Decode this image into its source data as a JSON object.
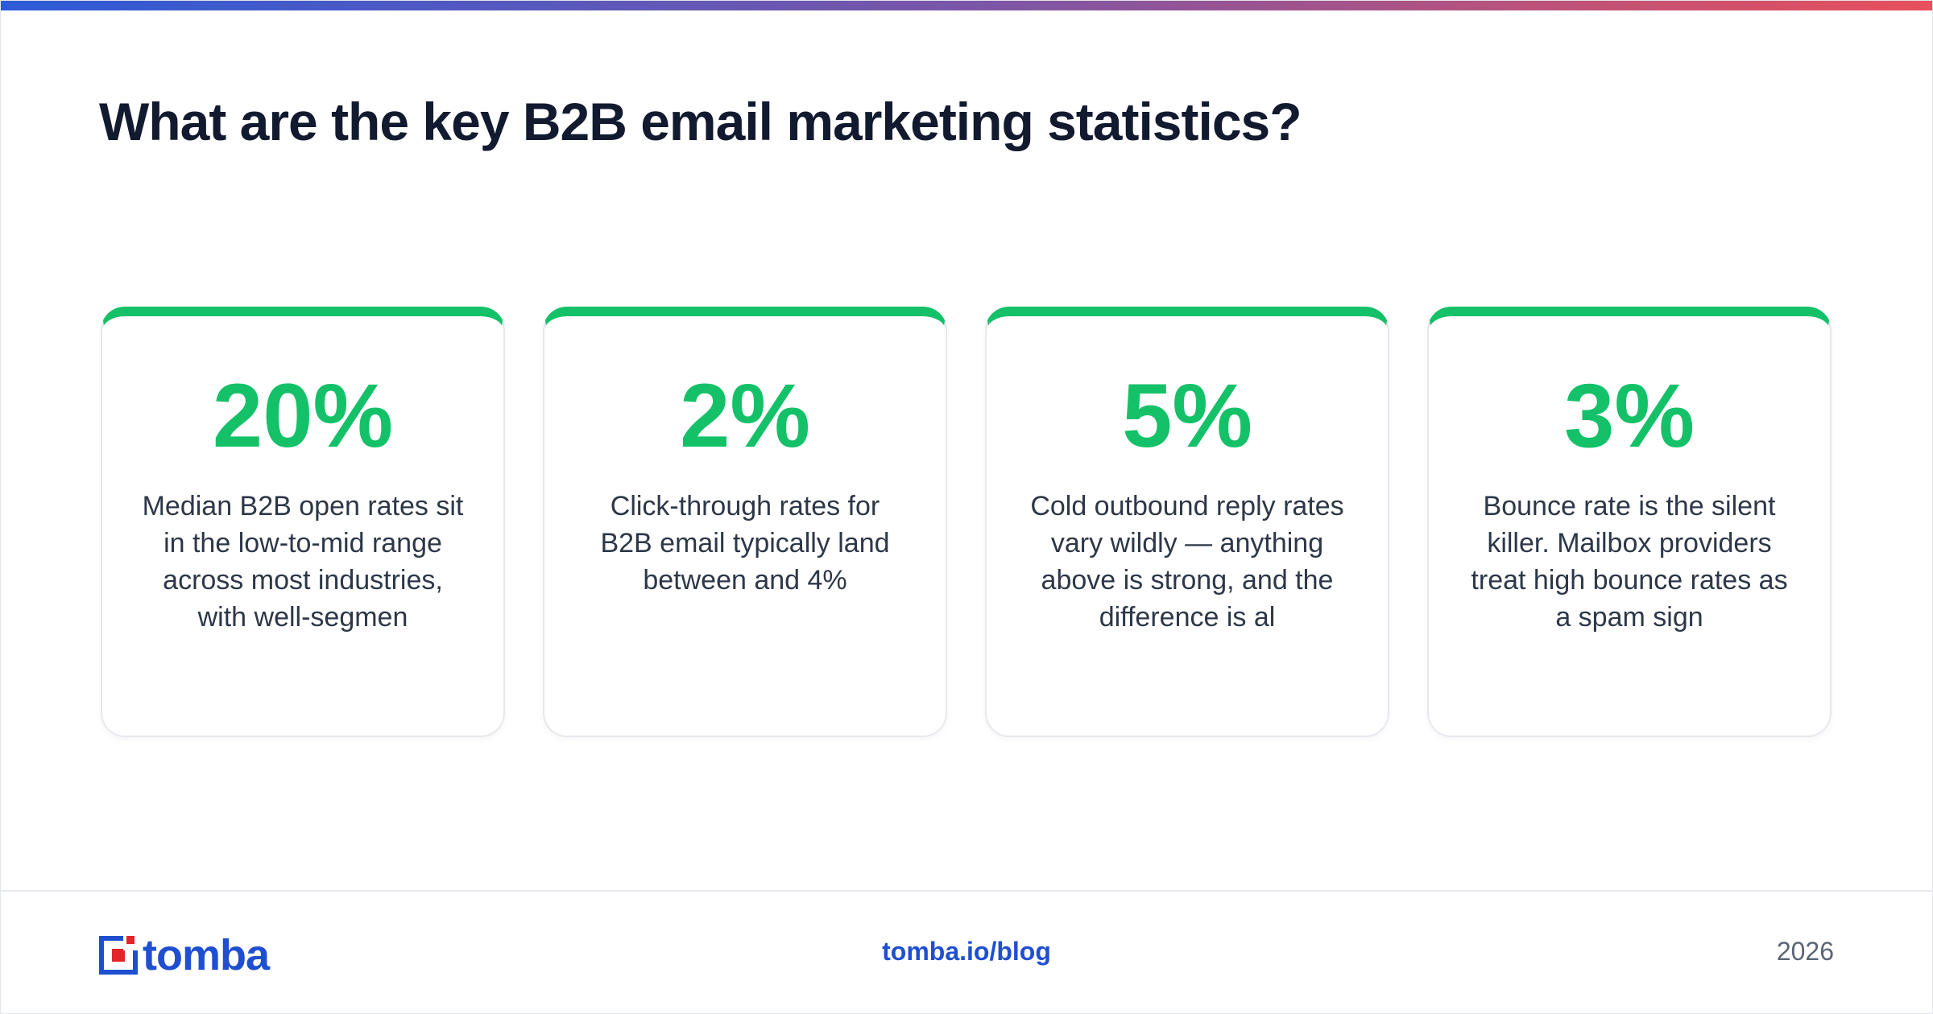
{
  "header": {
    "title": "What are the key B2B email marketing statistics?"
  },
  "cards": [
    {
      "value": "20%",
      "text": "Median B2B open rates sit in the low-to-mid range across most industries, with well-segmen"
    },
    {
      "value": "2%",
      "text": "Click-through rates for B2B email typically land between and 4%"
    },
    {
      "value": "5%",
      "text": "Cold outbound reply rates vary wildly — anything above is strong, and the difference is al"
    },
    {
      "value": "3%",
      "text": "Bounce rate is the silent killer. Mailbox providers treat high bounce rates as a spam sign"
    }
  ],
  "footer": {
    "logo": "tomba",
    "url": "tomba.io/blog",
    "year": "2026"
  }
}
